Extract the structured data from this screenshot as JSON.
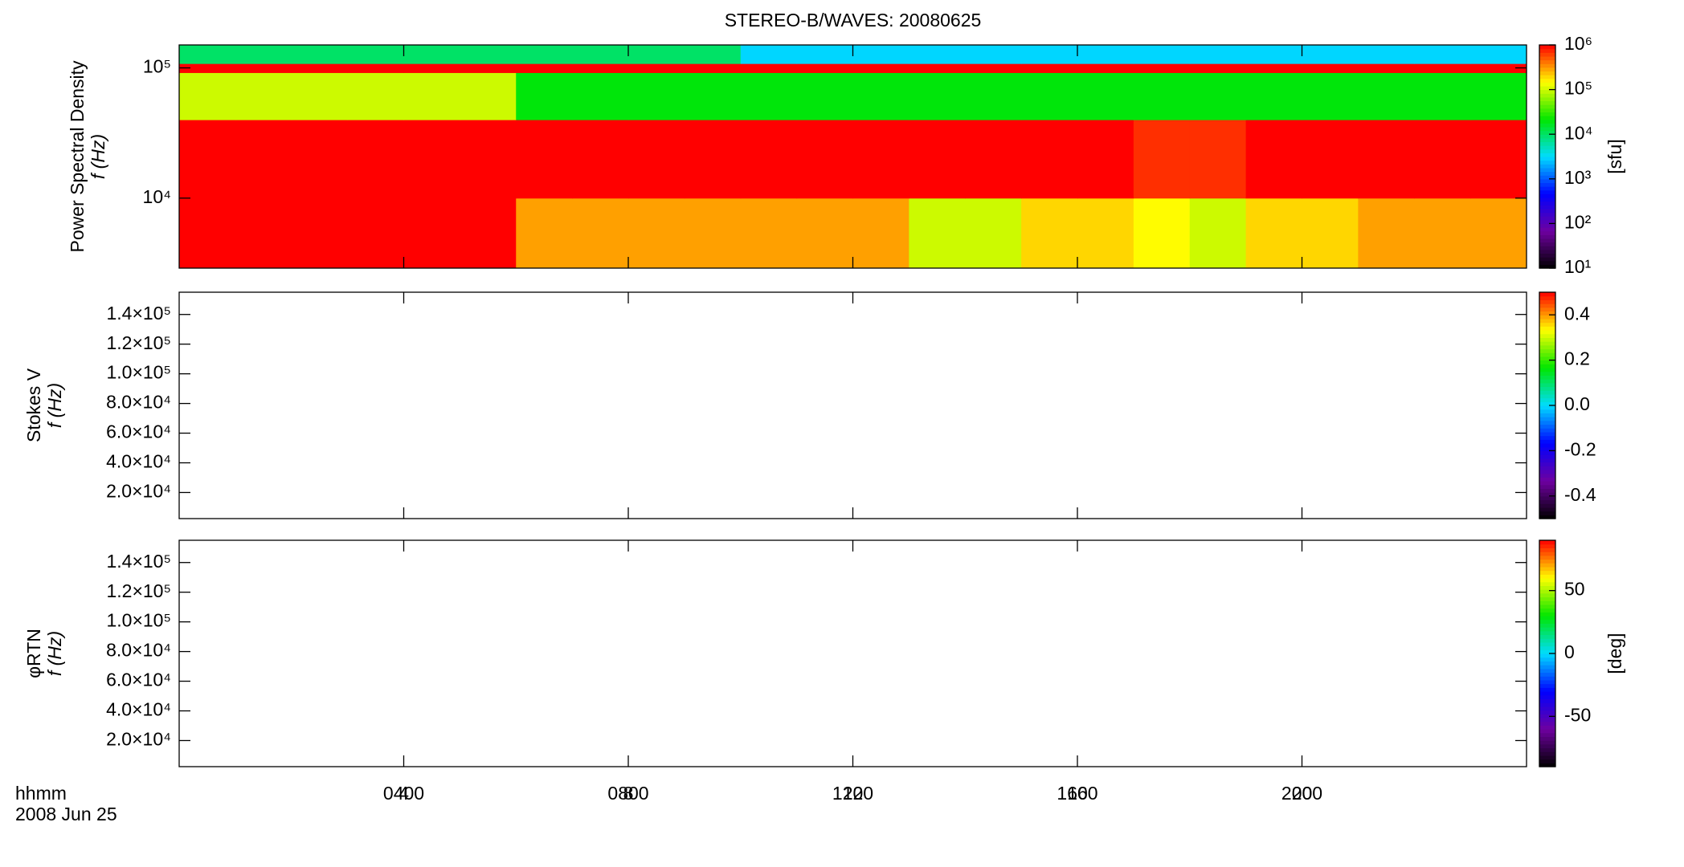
{
  "chart_data": [
    {
      "type": "heatmap",
      "title": "STEREO-B/WAVES: 20080625",
      "ylabel": [
        "Power Spectral Density",
        "f (Hz)"
      ],
      "ylog": true,
      "ylim": [
        2900,
        150000
      ],
      "yticks": [
        {
          "value": 10000,
          "label": "10⁴"
        },
        {
          "value": 100000,
          "label": "10⁵"
        }
      ],
      "xlim": [
        0,
        24
      ],
      "xticks": [
        {
          "value": 4,
          "label": "0400"
        },
        {
          "value": 8,
          "label": "0800"
        },
        {
          "value": 12,
          "label": "1200"
        },
        {
          "value": 16,
          "label": "1600"
        },
        {
          "value": 20,
          "label": "2000"
        }
      ],
      "x_bins": [
        0,
        1,
        2,
        3,
        4,
        5,
        6,
        7,
        8,
        9,
        10,
        11,
        12,
        13,
        14,
        15,
        16,
        17,
        18,
        19,
        20,
        21,
        22,
        23,
        24
      ],
      "y_bins": [
        2900,
        10000,
        40000,
        92000,
        108000,
        150000
      ],
      "values": [
        [
          1000000,
          1000000,
          1000000,
          1000000,
          1000000,
          1000000,
          300000,
          300000,
          300000,
          300000,
          300000,
          300000,
          300000,
          100000,
          100000,
          200000,
          200000,
          150000,
          100000,
          200000,
          200000,
          300000,
          300000,
          300000
        ],
        [
          1000000,
          1000000,
          1000000,
          1000000,
          1000000,
          1000000,
          1000000,
          1000000,
          1000000,
          1000000,
          1000000,
          1000000,
          1000000,
          1000000,
          1000000,
          1000000,
          1000000,
          700000,
          700000,
          1000000,
          1000000,
          1000000,
          1000000,
          1000000
        ],
        [
          100000,
          100000,
          100000,
          100000,
          100000,
          100000,
          20000,
          20000,
          20000,
          20000,
          20000,
          20000,
          20000,
          20000,
          20000,
          20000,
          20000,
          20000,
          20000,
          20000,
          20000,
          20000,
          20000,
          20000
        ],
        [
          1000000,
          1000000,
          1000000,
          1000000,
          1000000,
          1000000,
          1000000,
          1000000,
          1000000,
          1000000,
          1000000,
          1000000,
          1000000,
          1000000,
          1000000,
          1000000,
          1000000,
          1000000,
          1000000,
          1000000,
          1000000,
          1000000,
          1000000,
          1000000
        ],
        [
          10000,
          10000,
          10000,
          10000,
          10000,
          10000,
          10000,
          10000,
          10000,
          10000,
          3000,
          3000,
          3000,
          3000,
          3000,
          3000,
          3000,
          3000,
          3000,
          3000,
          3000,
          3000,
          3000,
          3000
        ]
      ],
      "colorbar": {
        "log": true,
        "lim": [
          10,
          1000000
        ],
        "label": "[sfu]",
        "ticks": [
          {
            "value": 10,
            "label": "10¹"
          },
          {
            "value": 100,
            "label": "10²"
          },
          {
            "value": 1000,
            "label": "10³"
          },
          {
            "value": 10000,
            "label": "10⁴"
          },
          {
            "value": 100000,
            "label": "10⁵"
          },
          {
            "value": 1000000,
            "label": "10⁶"
          }
        ]
      }
    },
    {
      "type": "heatmap",
      "ylabel": [
        "Stokes V",
        "f (Hz)"
      ],
      "ylog": false,
      "ylim": [
        2400,
        155000
      ],
      "yticks": [
        {
          "value": 20000,
          "label": "2.0×10⁴"
        },
        {
          "value": 40000,
          "label": "4.0×10⁴"
        },
        {
          "value": 60000,
          "label": "6.0×10⁴"
        },
        {
          "value": 80000,
          "label": "8.0×10⁴"
        },
        {
          "value": 100000,
          "label": "1.0×10⁵"
        },
        {
          "value": 120000,
          "label": "1.2×10⁵"
        },
        {
          "value": 140000,
          "label": "1.4×10⁵"
        }
      ],
      "xlim": [
        0,
        24
      ],
      "xticks": [
        4,
        8,
        12,
        16,
        20
      ],
      "colorbar": {
        "log": false,
        "lim": [
          -0.5,
          0.5
        ],
        "ticks": [
          -0.4,
          -0.2,
          {
            "value": 0,
            "label": "0.0"
          },
          0.2,
          0.4
        ]
      }
    },
    {
      "type": "heatmap",
      "ylabel": [
        "φRTN",
        "f (Hz)"
      ],
      "ylog": false,
      "ylim": [
        2400,
        155000
      ],
      "yticks": [
        {
          "value": 20000,
          "label": "2.0×10⁴"
        },
        {
          "value": 40000,
          "label": "4.0×10⁴"
        },
        {
          "value": 60000,
          "label": "6.0×10⁴"
        },
        {
          "value": 80000,
          "label": "8.0×10⁴"
        },
        {
          "value": 100000,
          "label": "1.0×10⁵"
        },
        {
          "value": 120000,
          "label": "1.2×10⁵"
        },
        {
          "value": 140000,
          "label": "1.4×10⁵"
        }
      ],
      "xlim": [
        0,
        24
      ],
      "xticks": [
        4,
        8,
        12,
        16,
        20
      ],
      "xlabel": [
        "hhmm",
        "2008 Jun 25"
      ],
      "colorbar": {
        "log": false,
        "lim": [
          -90,
          90
        ],
        "label": "[deg]",
        "ticks": [
          -50,
          0,
          50
        ]
      }
    }
  ]
}
